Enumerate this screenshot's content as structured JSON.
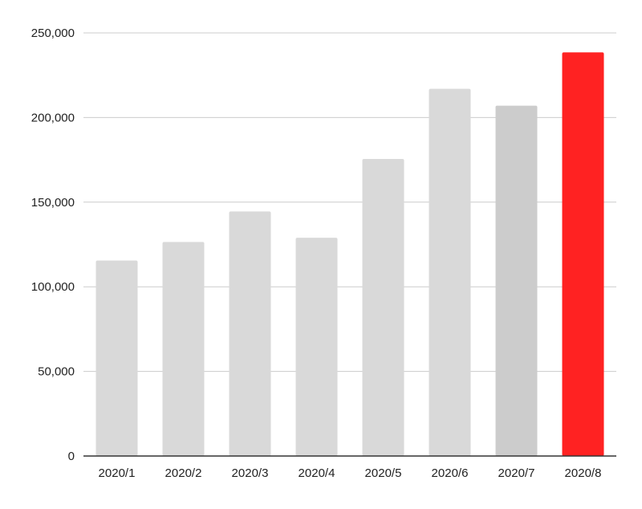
{
  "chart_data": {
    "type": "bar",
    "title": "",
    "xlabel": "",
    "ylabel": "",
    "categories": [
      "2020/1",
      "2020/2",
      "2020/3",
      "2020/4",
      "2020/5",
      "2020/6",
      "2020/7",
      "2020/8"
    ],
    "values": [
      115500,
      126500,
      144500,
      129000,
      175500,
      217000,
      207000,
      238500
    ],
    "bar_colors": [
      "#d9d9d9",
      "#d9d9d9",
      "#d9d9d9",
      "#d9d9d9",
      "#d9d9d9",
      "#d9d9d9",
      "#cccccc",
      "#ff2222"
    ],
    "ylim": [
      0,
      250000
    ],
    "yticks": [
      0,
      50000,
      100000,
      150000,
      200000,
      250000
    ],
    "ytick_labels": [
      "0",
      "50,000",
      "100,000",
      "150,000",
      "200,000",
      "250,000"
    ],
    "grid": true,
    "grid_color": "#cccccc",
    "axis_color": "#333333",
    "legend": "none"
  }
}
